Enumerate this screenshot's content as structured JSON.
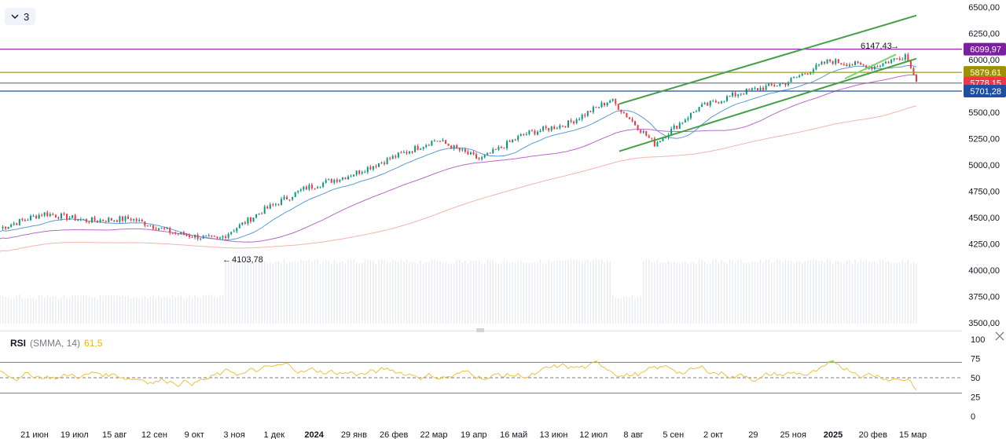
{
  "toolbar": {
    "collapse_count": "3"
  },
  "price_axis": {
    "ticks": [
      "6500,00",
      "6250,00",
      "6000,00",
      "5750,00",
      "5500,00",
      "5250,00",
      "5000,00",
      "4750,00",
      "4500,00",
      "4250,00",
      "4000,00",
      "3750,00",
      "3500,00"
    ]
  },
  "price_tags": [
    {
      "label": "6099,97",
      "value": 6099.97,
      "color": "#7b1fa2"
    },
    {
      "label": "5879.61",
      "value": 5879.61,
      "color": "#a09000"
    },
    {
      "label": "5778,15",
      "value": 5778.15,
      "color": "#f23645"
    },
    {
      "label": "5701,28",
      "value": 5701.28,
      "color": "#1e4fa0"
    }
  ],
  "horizontal_levels": [
    {
      "value": 6099.97,
      "color": "#9c27b0"
    },
    {
      "value": 5879.61,
      "color": "#9e9a2a"
    },
    {
      "value": 5778.15,
      "color": "#787b86"
    },
    {
      "value": 5701.28,
      "color": "#1e4fa0"
    }
  ],
  "annotations": {
    "high_label": "6147,43",
    "low_label": "4103,78"
  },
  "time_axis": {
    "labels": [
      "21 июн",
      "19 июл",
      "15 авг",
      "12 сен",
      "9 окт",
      "3 ноя",
      "1 дек",
      "2024",
      "29 янв",
      "26 фев",
      "22 мар",
      "19 апр",
      "16 май",
      "13 июн",
      "12 июл",
      "8 авг",
      "5 сен",
      "2 окт",
      "29",
      "25 ноя",
      "2025",
      "20 фев",
      "15 мар"
    ],
    "bold": [
      "2024",
      "2025"
    ]
  },
  "rsi": {
    "title": "RSI",
    "params": "(SMMA, 14)",
    "value": "61,5",
    "axis_ticks": [
      "100",
      "75",
      "50",
      "25",
      "0"
    ],
    "upper_band": 70,
    "lower_band": 30,
    "mid_line": 50
  },
  "colors": {
    "candle_up": "#089981",
    "candle_down": "#f23645",
    "ma_fast": "#5b9bd5",
    "ma_mid": "#ba68c8",
    "ma_slow": "#f4b4ad",
    "channel": "#43a047",
    "rsi_line": "#f0c040",
    "rsi_fill": "#7ed957",
    "volume": "#e6e9ef"
  },
  "chart_data": {
    "type": "line",
    "title": "",
    "x": [
      "21 июн",
      "19 июл",
      "15 авг",
      "12 сен",
      "9 окт",
      "3 ноя",
      "1 дек",
      "2024",
      "29 янв",
      "26 фев",
      "22 мар",
      "19 апр",
      "16 май",
      "13 июн",
      "12 июл",
      "8 авг",
      "5 сен",
      "2 окт",
      "29",
      "25 ноя",
      "2025",
      "20 фев"
    ],
    "series": [
      {
        "values": [
          4400,
          4540,
          4470,
          4490,
          4350,
          4290,
          4560,
          4780,
          4900,
          5070,
          5240,
          5050,
          5290,
          5390,
          5620,
          5200,
          5540,
          5690,
          5780,
          5990,
          5930,
          6080
        ]
      }
    ],
    "ylim": [
      3450,
      6580
    ],
    "xlabel": "",
    "ylabel": "",
    "grid": false,
    "legend": "none"
  }
}
